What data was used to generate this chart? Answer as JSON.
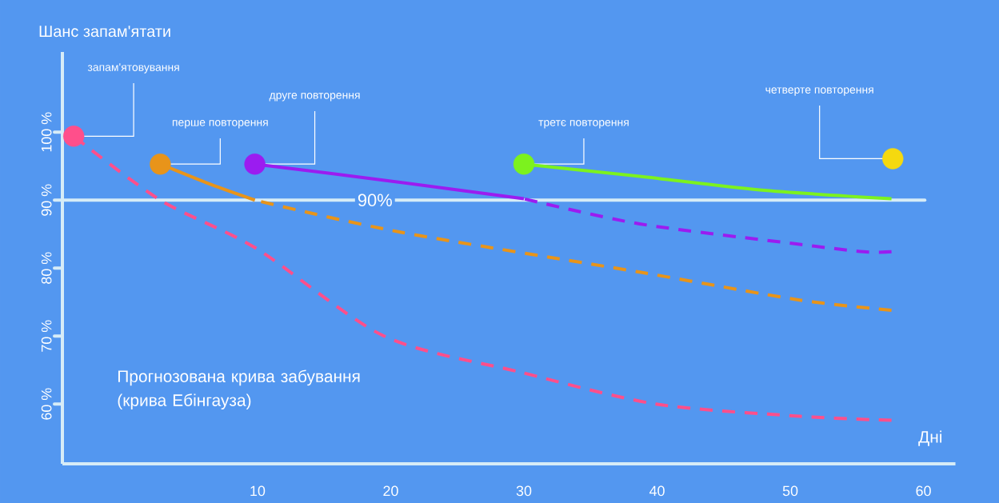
{
  "chart_data": {
    "type": "line",
    "ylabel": "Шанс запам'ятати",
    "xlabel": "Дні",
    "xlim": [
      -4.65,
      62.4
    ],
    "ylim": [
      51.2,
      111.8
    ],
    "xticks": [
      10,
      20,
      30,
      40,
      50,
      60
    ],
    "yticks": [
      {
        "value": 60,
        "label": "60 %"
      },
      {
        "value": 70,
        "label": "70 %"
      },
      {
        "value": 80,
        "label": "80 %"
      },
      {
        "value": 90,
        "label": "90 %"
      },
      {
        "value": 100,
        "label": "100 %"
      }
    ],
    "ref_lines": [
      {
        "axis": "y",
        "value": 90,
        "label": "90%",
        "color": "#d6ecf7"
      }
    ],
    "series": [
      {
        "color": "#ff4f8b",
        "line_style": "dashed",
        "x": [
          -3.8,
          2.7,
          9.9,
          19.5,
          29.7,
          39.9,
          50.7,
          57.6
        ],
        "values": [
          99.4,
          90,
          82.9,
          70,
          64.7,
          60,
          58.2,
          57.6
        ]
      },
      {
        "color": "#e8941a",
        "line_style": "solid",
        "x": [
          2.7,
          6.5,
          9.8
        ],
        "values": [
          95.3,
          92.3,
          90
        ]
      },
      {
        "color": "#e8941a",
        "line_style": "dashed",
        "x": [
          9.8,
          20.7,
          38.7,
          50.7,
          57.6
        ],
        "values": [
          90,
          85.3,
          79.4,
          75.3,
          73.8
        ]
      },
      {
        "color": "#9b1cf0",
        "line_style": "solid",
        "x": [
          9.8,
          20,
          30
        ],
        "values": [
          95.3,
          92.8,
          90.2
        ]
      },
      {
        "color": "#9b1cf0",
        "line_style": "dashed",
        "x": [
          30,
          38.7,
          50.7,
          55.5,
          57.6
        ],
        "values": [
          90.2,
          86.5,
          83.5,
          82.4,
          82.4
        ]
      },
      {
        "color": "#7cf21e",
        "line_style": "solid",
        "x": [
          30,
          38.7,
          47.7,
          57.6
        ],
        "values": [
          95.3,
          93.5,
          91.5,
          90.2
        ]
      },
      {
        "type": "scatter",
        "marker": "circle",
        "x": [
          -3.8,
          2.7,
          9.8,
          30,
          57.7
        ],
        "values": [
          99.4,
          95.3,
          95.3,
          95.3,
          96.1
        ],
        "colors": [
          "#ff4f8b",
          "#e8941a",
          "#9b1cf0",
          "#7cf21e",
          "#f5d90f"
        ]
      }
    ],
    "annotations": [
      {
        "text": "запам'ятовування",
        "x": -3.8,
        "y": 99.4
      },
      {
        "text": "перше повторення",
        "x": 2.7,
        "y": 95.3
      },
      {
        "text": "друге повторення",
        "x": 9.8,
        "y": 95.3
      },
      {
        "text": "третє повторення",
        "x": 30,
        "y": 95.3
      },
      {
        "text": "четверте повторення",
        "x": 57.7,
        "y": 96.1
      },
      "Прогнозована крива забування (крива Ебінгауза)"
    ]
  }
}
